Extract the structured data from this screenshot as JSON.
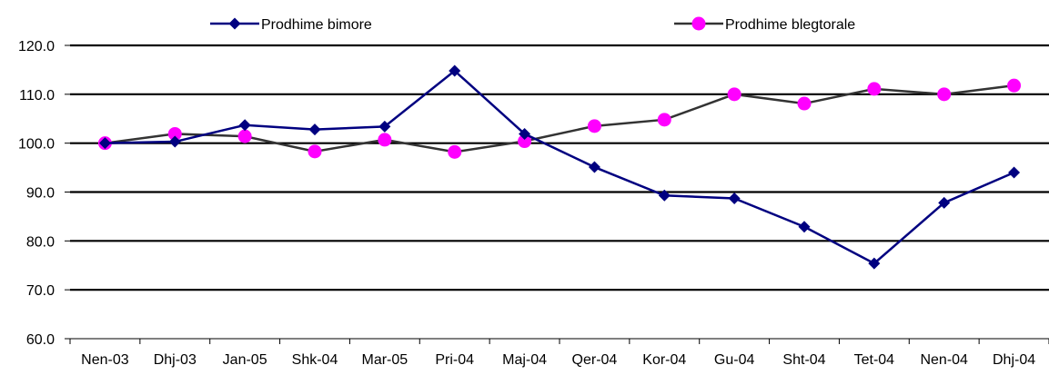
{
  "chart_data": {
    "type": "line",
    "title": "",
    "xlabel": "",
    "ylabel": "",
    "categories": [
      "Nen-03",
      "Dhj-03",
      "Jan-05",
      "Shk-04",
      "Mar-05",
      "Pri-04",
      "Maj-04",
      "Qer-04",
      "Kor-04",
      "Gu-04",
      "Sht-04",
      "Tet-04",
      "Nen-04",
      "Dhj-04"
    ],
    "ylim": [
      60,
      120
    ],
    "yticks": [
      "60.0",
      "70.0",
      "80.0",
      "90.0",
      "100.0",
      "110.0",
      "120.0"
    ],
    "grid": true,
    "legend_position": "top",
    "series": [
      {
        "name": "Prodhime bimore",
        "line_color": "#000080",
        "marker": "diamond",
        "marker_color": "#000080",
        "values": [
          100.0,
          100.3,
          103.7,
          102.8,
          103.4,
          114.8,
          101.9,
          95.1,
          89.3,
          88.7,
          82.9,
          75.4,
          87.8,
          94.0
        ]
      },
      {
        "name": "Prodhime blegtorale",
        "line_color": "#333333",
        "marker": "circle",
        "marker_color": "#ff00ff",
        "values": [
          100.0,
          101.9,
          101.4,
          98.3,
          100.7,
          98.2,
          100.4,
          103.5,
          104.8,
          110.0,
          108.1,
          111.1,
          110.0,
          111.8
        ]
      }
    ]
  }
}
